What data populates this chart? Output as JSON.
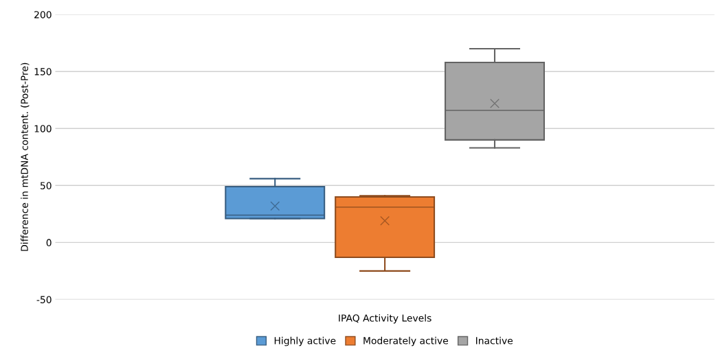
{
  "chart_data": {
    "type": "box",
    "xlabel": "IPAQ Activity Levels",
    "ylabel": "Difference in mtDNA content. (Post-Pre)",
    "categories": [
      null
    ],
    "ylim": [
      -50,
      200
    ],
    "yticks": [
      -50,
      0,
      50,
      100,
      150,
      200
    ],
    "grid": "y",
    "legend": "bottom",
    "marker": "cross",
    "series": [
      {
        "name": "Highly active",
        "color": "#5b9bd5",
        "boxes": [
          {
            "low": 21,
            "q1": 21,
            "median": 24,
            "q3": 49,
            "high": 56,
            "mean": 32
          }
        ]
      },
      {
        "name": "Moderately active",
        "color": "#ed7d31",
        "boxes": [
          {
            "low": -25,
            "q1": -13,
            "median": 31,
            "q3": 40,
            "high": 41,
            "mean": 19
          }
        ]
      },
      {
        "name": "Inactive",
        "color": "#a5a5a5",
        "boxes": [
          {
            "low": 83,
            "q1": 90,
            "median": 116,
            "q3": 158,
            "high": 170,
            "mean": 122
          }
        ]
      }
    ]
  }
}
